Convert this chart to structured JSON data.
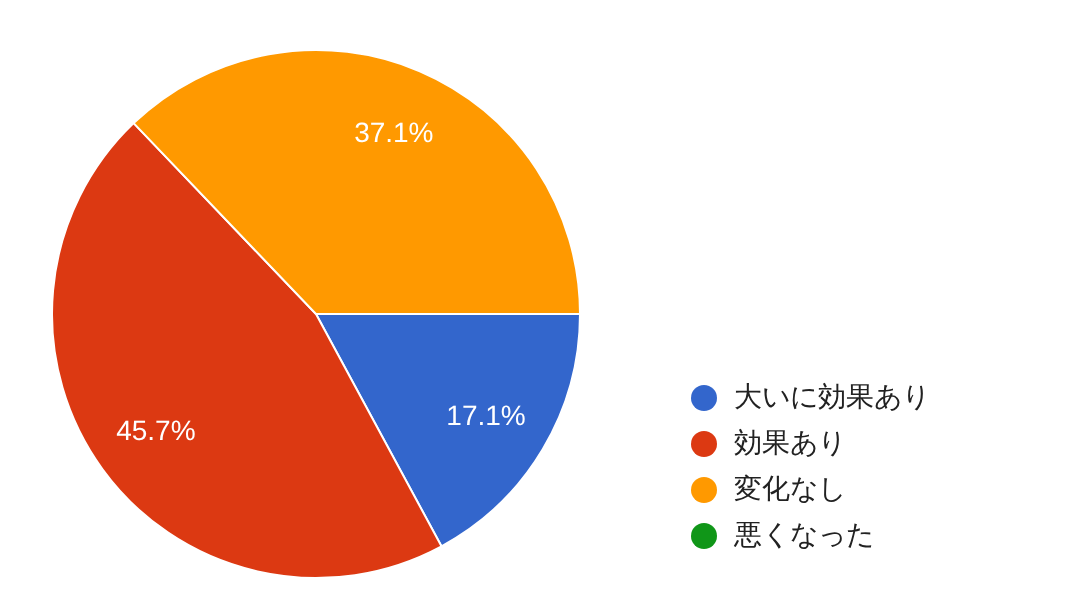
{
  "chart_data": {
    "type": "pie",
    "categories": [
      "大いに効果あり",
      "効果あり",
      "変化なし",
      "悪くなった"
    ],
    "values": [
      17.1,
      45.7,
      37.1,
      0
    ],
    "colors": [
      "#3366cc",
      "#dc3912",
      "#ff9900",
      "#109618"
    ],
    "value_labels": [
      "17.1%",
      "45.7%",
      "37.1%",
      null
    ],
    "legend": "right"
  }
}
